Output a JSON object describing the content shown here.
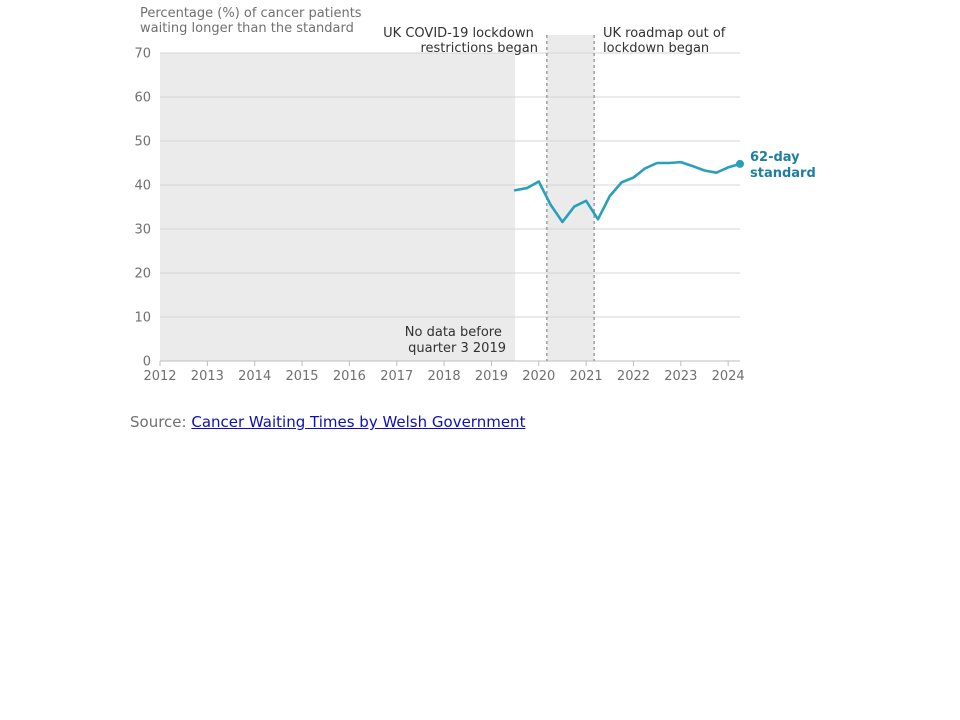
{
  "chart_data": {
    "type": "line",
    "ylabel": "Percentage (%) of cancer patients waiting longer than the standard",
    "ylabel_lines": [
      "Percentage (%) of cancer patients",
      "waiting longer than the standard"
    ],
    "ylim": [
      0,
      70
    ],
    "yticks": [
      0,
      10,
      20,
      30,
      40,
      50,
      60,
      70
    ],
    "xlim": [
      2012,
      2024.25
    ],
    "xticks": [
      2012,
      2013,
      2014,
      2015,
      2016,
      2017,
      2018,
      2019,
      2020,
      2021,
      2022,
      2023,
      2024
    ],
    "grid": true,
    "series": [
      {
        "name": "62-day standard",
        "name_lines": [
          "62-day",
          "standard"
        ],
        "color": "#2a9fbc",
        "points": [
          {
            "x": 2019.5,
            "y": 38.8
          },
          {
            "x": 2019.75,
            "y": 39.3
          },
          {
            "x": 2020.0,
            "y": 40.8
          },
          {
            "x": 2020.25,
            "y": 35.5
          },
          {
            "x": 2020.5,
            "y": 31.6
          },
          {
            "x": 2020.75,
            "y": 35.1
          },
          {
            "x": 2021.0,
            "y": 36.4
          },
          {
            "x": 2021.25,
            "y": 32.2
          },
          {
            "x": 2021.5,
            "y": 37.5
          },
          {
            "x": 2021.75,
            "y": 40.6
          },
          {
            "x": 2022.0,
            "y": 41.7
          },
          {
            "x": 2022.25,
            "y": 43.8
          },
          {
            "x": 2022.5,
            "y": 45.0
          },
          {
            "x": 2022.75,
            "y": 45.0
          },
          {
            "x": 2023.0,
            "y": 45.2
          },
          {
            "x": 2023.25,
            "y": 44.3
          },
          {
            "x": 2023.5,
            "y": 43.3
          },
          {
            "x": 2023.75,
            "y": 42.8
          },
          {
            "x": 2024.0,
            "y": 44.0
          },
          {
            "x": 2024.25,
            "y": 44.8
          }
        ]
      }
    ],
    "shaded_regions": [
      {
        "from": 2012,
        "to": 2019.5,
        "name": "no-data",
        "color": "#ebebeb"
      },
      {
        "from": 2020.17,
        "to": 2021.17,
        "name": "lockdown",
        "color": "#ebebeb"
      }
    ],
    "reference_lines": [
      {
        "x": 2020.17,
        "name": "lockdown-start"
      },
      {
        "x": 2021.17,
        "name": "lockdown-end"
      }
    ],
    "annotations": {
      "no_data": [
        "No data before",
        "quarter 3 2019"
      ],
      "lockdown_start": [
        "UK COVID-19 lockdown",
        "restrictions began"
      ],
      "lockdown_end": [
        "UK roadmap out of",
        "lockdown began"
      ]
    }
  },
  "source": {
    "prefix": "Source: ",
    "link_text": "Cancer Waiting Times by Welsh Government"
  }
}
